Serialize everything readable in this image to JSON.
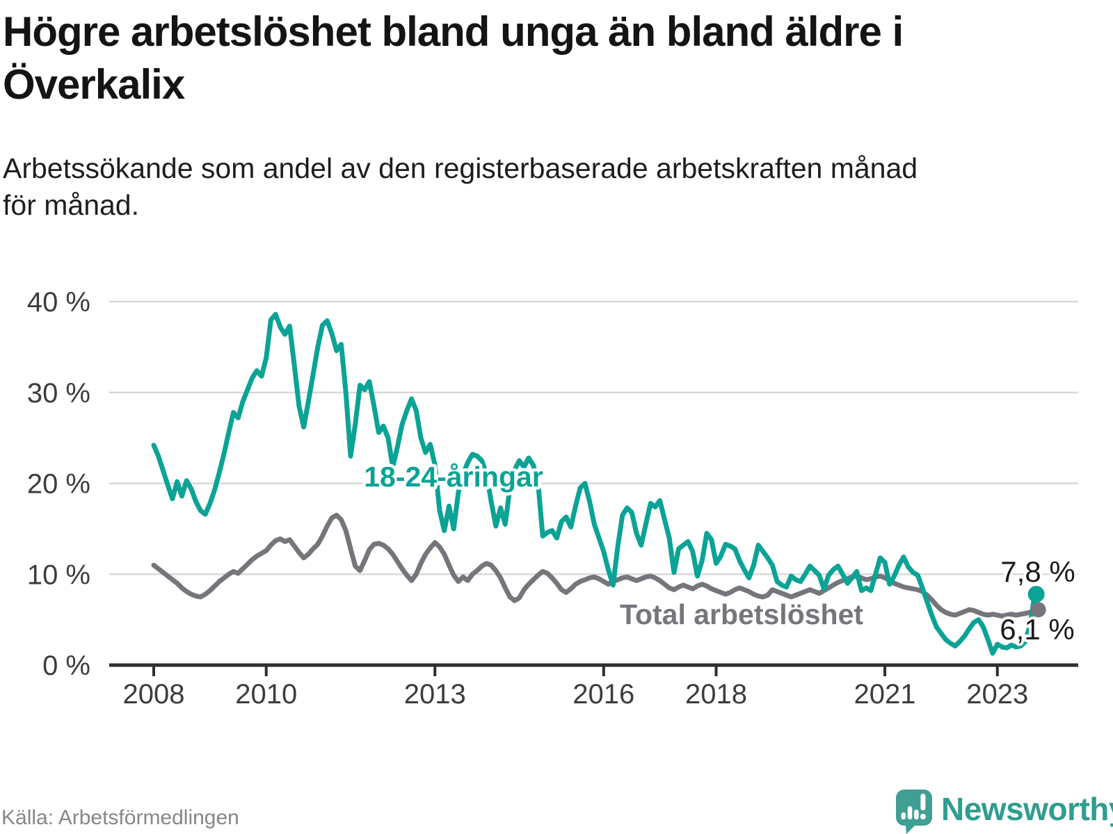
{
  "header": {
    "title_line1": "Högre arbetslöshet bland unga än bland äldre i",
    "title_line2": "Överkalix",
    "subtitle_line1": "Arbetssökande som andel av den registerbaserade arbetskraften månad",
    "subtitle_line2": "för månad."
  },
  "footer": {
    "source": "Källa: Arbetsförmedlingen",
    "logo_text": "Newsworthy"
  },
  "chart_data": {
    "type": "line",
    "title": "Högre arbetslöshet bland unga än bland äldre i Överkalix",
    "subtitle": "Arbetssökande som andel av den registerbaserade arbetskraften månad för månad.",
    "x_unit": "month",
    "x_start": "2008-01",
    "x_end": "2023-09",
    "grid": true,
    "legend_position": "inline-labels",
    "y_axis": {
      "min": 0,
      "max": 40,
      "ticks": [
        {
          "value": 0,
          "label": "0 %"
        },
        {
          "value": 10,
          "label": "10 %"
        },
        {
          "value": 20,
          "label": "20 %"
        },
        {
          "value": 30,
          "label": "30 %"
        },
        {
          "value": 40,
          "label": "40 %"
        }
      ]
    },
    "x_axis": {
      "ticks": [
        {
          "year": 2008,
          "label": "2008"
        },
        {
          "year": 2010,
          "label": "2010"
        },
        {
          "year": 2013,
          "label": "2013"
        },
        {
          "year": 2016,
          "label": "2016"
        },
        {
          "year": 2018,
          "label": "2018"
        },
        {
          "year": 2021,
          "label": "2021"
        },
        {
          "year": 2023,
          "label": "2023"
        }
      ]
    },
    "series": [
      {
        "name": "18-24-åringar",
        "color": "#0aa396",
        "end_label": "7,8 %",
        "end_value": 7.8,
        "values": [
          24.2,
          23.0,
          21.4,
          19.8,
          18.3,
          20.2,
          18.6,
          20.3,
          19.4,
          18.0,
          17.0,
          16.6,
          17.8,
          19.3,
          21.2,
          23.3,
          25.6,
          27.8,
          27.2,
          29.0,
          30.3,
          31.6,
          32.4,
          31.8,
          33.8,
          38.0,
          38.6,
          37.2,
          36.4,
          37.3,
          33.0,
          28.5,
          26.2,
          29.0,
          32.0,
          35.0,
          37.4,
          37.9,
          36.5,
          34.6,
          35.3,
          30.0,
          23.0,
          26.5,
          30.8,
          30.3,
          31.2,
          28.5,
          25.6,
          26.3,
          25.0,
          21.8,
          24.0,
          26.5,
          28.0,
          29.3,
          28.0,
          25.0,
          23.4,
          24.3,
          22.0,
          17.0,
          14.8,
          17.5,
          15.0,
          19.0,
          21.0,
          22.3,
          23.2,
          23.0,
          22.5,
          21.0,
          18.0,
          15.3,
          17.3,
          15.5,
          19.5,
          21.5,
          22.5,
          21.8,
          22.8,
          22.0,
          20.0,
          14.2,
          14.6,
          14.8,
          14.0,
          15.8,
          16.3,
          15.2,
          17.5,
          19.5,
          20.0,
          18.0,
          15.5,
          14.0,
          12.5,
          10.5,
          8.8,
          13.0,
          16.5,
          17.3,
          16.8,
          14.5,
          13.2,
          15.5,
          17.8,
          17.4,
          18.1,
          16.0,
          14.0,
          10.2,
          12.8,
          13.2,
          13.6,
          12.5,
          9.8,
          11.5,
          14.5,
          13.8,
          11.2,
          12.0,
          13.3,
          13.1,
          12.8,
          11.5,
          10.5,
          9.6,
          11.0,
          13.2,
          12.5,
          11.8,
          11.0,
          9.2,
          8.8,
          8.6,
          9.8,
          9.4,
          9.2,
          10.0,
          10.9,
          10.4,
          9.9,
          8.4,
          9.9,
          10.5,
          10.9,
          10.0,
          9.0,
          9.6,
          10.3,
          8.2,
          8.5,
          8.2,
          10.0,
          11.8,
          11.3,
          8.9,
          9.8,
          11.0,
          11.9,
          10.8,
          10.2,
          9.9,
          8.5,
          7.0,
          5.5,
          4.2,
          3.5,
          2.8,
          2.4,
          2.1,
          2.6,
          3.2,
          4.0,
          4.7,
          5.0,
          4.2,
          2.8,
          1.3,
          2.3,
          2.0,
          1.9,
          2.2,
          2.0,
          2.1,
          2.6,
          4.5,
          7.8
        ]
      },
      {
        "name": "Total arbetslöshet",
        "color": "#75757c",
        "end_label": "6,1 %",
        "end_value": 6.1,
        "values": [
          11.0,
          10.6,
          10.2,
          9.8,
          9.4,
          9.0,
          8.5,
          8.1,
          7.8,
          7.6,
          7.5,
          7.8,
          8.2,
          8.7,
          9.2,
          9.6,
          10.0,
          10.3,
          10.1,
          10.6,
          11.1,
          11.6,
          12.0,
          12.3,
          12.6,
          13.2,
          13.7,
          13.9,
          13.6,
          13.8,
          13.1,
          12.4,
          11.8,
          12.2,
          12.8,
          13.3,
          14.2,
          15.3,
          16.2,
          16.5,
          16.0,
          14.8,
          12.8,
          10.9,
          10.4,
          11.5,
          12.7,
          13.3,
          13.4,
          13.2,
          12.8,
          12.2,
          11.4,
          10.6,
          9.9,
          9.3,
          10.0,
          11.2,
          12.2,
          12.9,
          13.5,
          13.0,
          12.2,
          11.0,
          9.9,
          9.2,
          9.7,
          9.3,
          10.0,
          10.4,
          10.9,
          11.2,
          11.0,
          10.4,
          9.6,
          8.5,
          7.5,
          7.1,
          7.4,
          8.3,
          8.9,
          9.4,
          9.9,
          10.3,
          10.1,
          9.6,
          9.0,
          8.3,
          8.0,
          8.4,
          8.9,
          9.2,
          9.4,
          9.6,
          9.7,
          9.5,
          9.2,
          8.9,
          9.2,
          9.4,
          9.6,
          9.7,
          9.5,
          9.3,
          9.5,
          9.7,
          9.8,
          9.6,
          9.3,
          8.9,
          8.5,
          8.3,
          8.6,
          8.8,
          8.6,
          8.4,
          8.7,
          8.9,
          8.7,
          8.4,
          8.2,
          8.0,
          7.8,
          8.0,
          8.3,
          8.5,
          8.3,
          8.1,
          7.8,
          7.6,
          7.5,
          7.7,
          8.3,
          8.1,
          7.9,
          7.7,
          7.5,
          7.7,
          7.9,
          8.1,
          8.3,
          8.1,
          7.9,
          8.2,
          8.5,
          8.8,
          9.1,
          9.3,
          9.5,
          9.7,
          9.8,
          9.6,
          9.4,
          9.5,
          9.7,
          9.8,
          9.6,
          9.3,
          9.0,
          8.8,
          8.6,
          8.5,
          8.4,
          8.3,
          8.1,
          7.7,
          7.2,
          6.6,
          6.1,
          5.8,
          5.6,
          5.5,
          5.7,
          5.9,
          6.1,
          6.0,
          5.8,
          5.6,
          5.5,
          5.6,
          5.5,
          5.4,
          5.5,
          5.6,
          5.5,
          5.6,
          5.7,
          5.8,
          6.1
        ]
      }
    ]
  }
}
